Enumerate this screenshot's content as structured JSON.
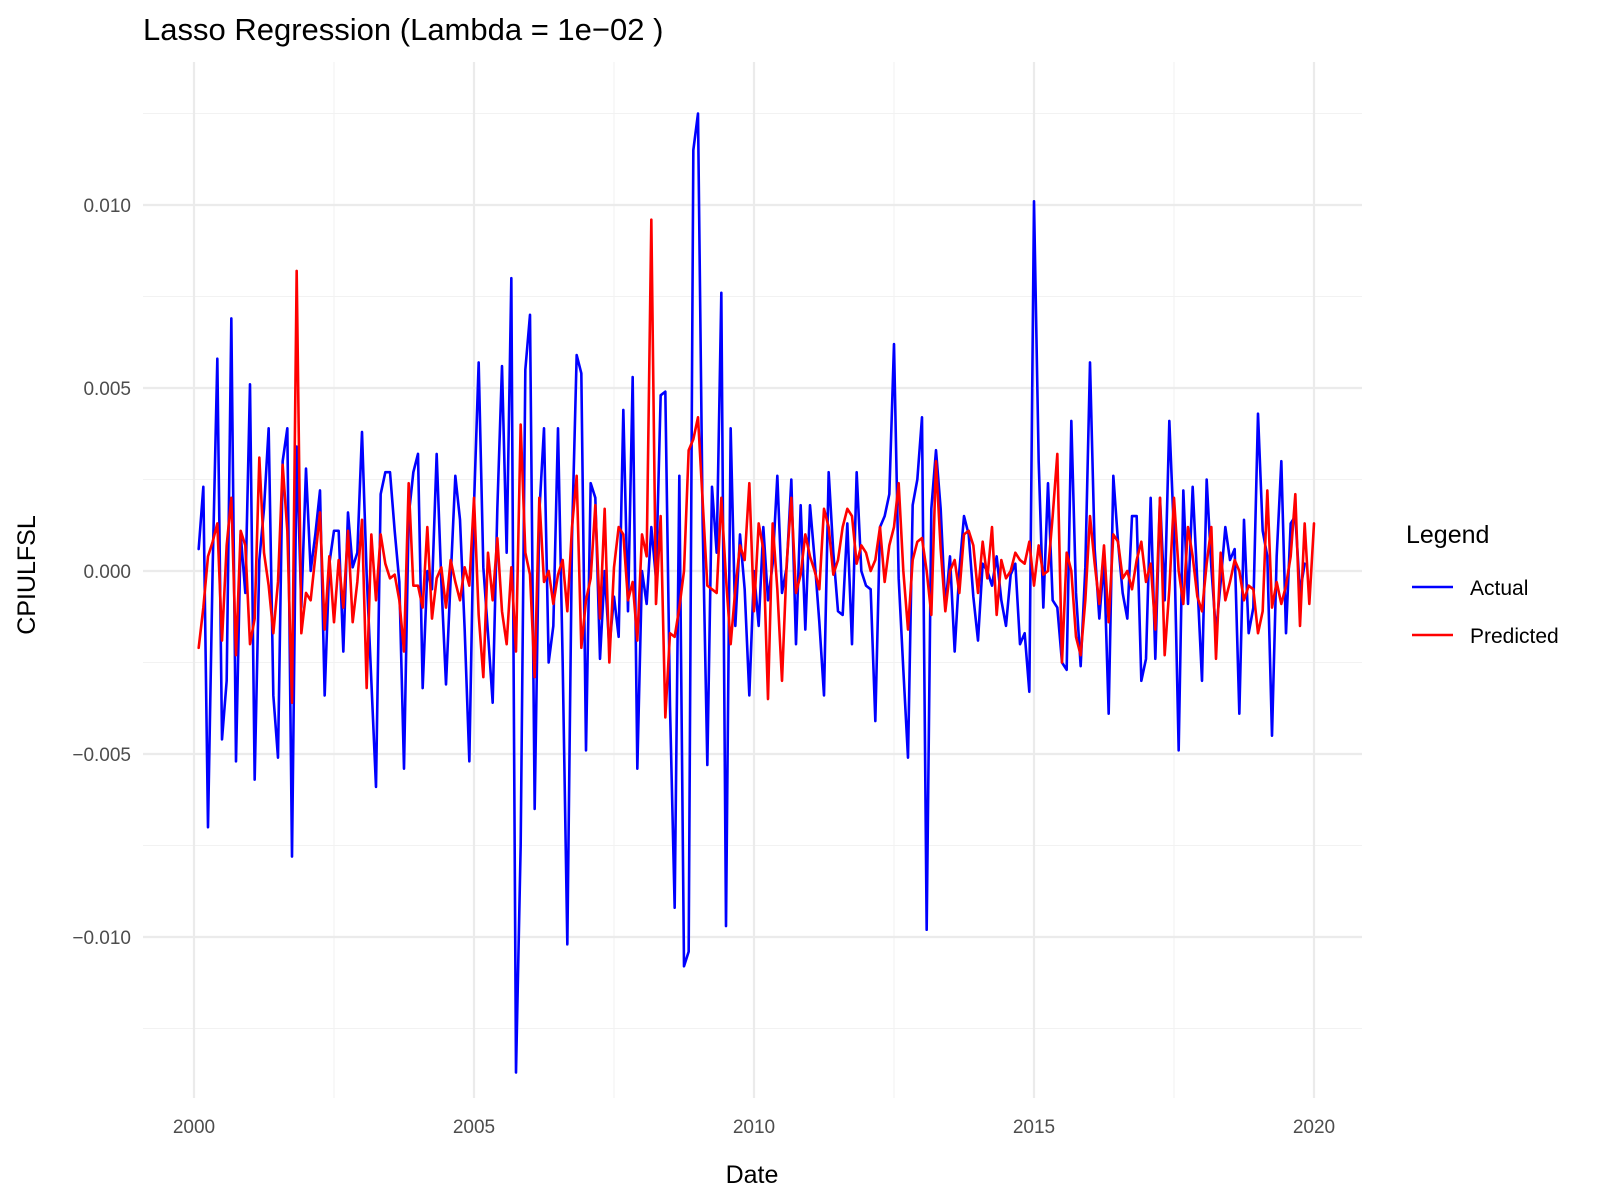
{
  "chart_data": {
    "type": "line",
    "title": "Lasso Regression (Lambda = 1e−02 )",
    "xlabel": "Date",
    "ylabel": "CPIULFSL",
    "xlim": [
      "2000-01-01",
      "2020-01-01"
    ],
    "ylim": [
      -0.0143,
      0.0131
    ],
    "x_ticks": [
      "2000",
      "2005",
      "2010",
      "2015",
      "2020"
    ],
    "y_ticks": [
      0.01,
      0.005,
      0.0,
      -0.005,
      -0.01
    ],
    "y_tick_labels": [
      "0.010",
      "0.005",
      "0.000",
      "−0.005",
      "−0.010"
    ],
    "grid": true,
    "legend": {
      "title": "Legend",
      "position": "right"
    },
    "x_start": "2000-02",
    "x_step": "1 month",
    "series": [
      {
        "name": "Actual",
        "color": "#0000ff",
        "values": [
          0.0006,
          0.0023,
          -0.007,
          0.0001,
          0.0058,
          -0.0046,
          -0.003,
          0.0069,
          -0.0052,
          0.001,
          -0.0006,
          0.0051,
          -0.0057,
          0.0003,
          0.0017,
          0.0039,
          -0.0034,
          -0.0051,
          0.003,
          0.0039,
          -0.0078,
          0.0034,
          -0.001,
          0.0028,
          0.0,
          0.001,
          0.0022,
          -0.0034,
          0.0002,
          0.0011,
          0.0011,
          -0.0022,
          0.0016,
          0.0001,
          0.0005,
          0.0038,
          -0.0001,
          -0.003,
          -0.0059,
          0.0021,
          0.0027,
          0.0027,
          0.0011,
          -0.0003,
          -0.0054,
          0.0015,
          0.0027,
          0.0032,
          -0.0032,
          0.0,
          -0.0005,
          0.0032,
          -0.0003,
          -0.0031,
          -0.0002,
          0.0026,
          0.0014,
          -0.0016,
          -0.0052,
          0.0018,
          0.0057,
          0.0001,
          -0.0017,
          -0.0036,
          0.0017,
          0.0056,
          0.0005,
          0.008,
          -0.0137,
          -0.0075,
          0.0055,
          0.007,
          -0.0065,
          0.0016,
          0.0039,
          -0.0025,
          -0.0015,
          0.0039,
          -0.0025,
          -0.0102,
          0.0009,
          0.0059,
          0.0054,
          -0.0049,
          0.0024,
          0.002,
          -0.0024,
          0.0,
          -0.0021,
          -0.0007,
          -0.0018,
          0.0044,
          -0.0011,
          0.0053,
          -0.0054,
          0.0,
          -0.0009,
          0.0012,
          -0.0002,
          0.0048,
          0.0049,
          -0.0037,
          -0.0092,
          0.0026,
          -0.0108,
          -0.0104,
          0.0115,
          0.0125,
          0.0013,
          -0.0053,
          0.0023,
          0.0005,
          0.0076,
          -0.0097,
          0.0039,
          -0.0015,
          0.001,
          -0.0005,
          -0.0034,
          0.0,
          -0.0015,
          0.0012,
          -0.0008,
          0.0002,
          0.0026,
          -0.0006,
          0.0001,
          0.0025,
          -0.002,
          0.0018,
          -0.0016,
          0.0018,
          0.0003,
          -0.0014,
          -0.0034,
          0.0027,
          0.0005,
          -0.0011,
          -0.0012,
          0.0013,
          -0.002,
          0.0027,
          0.0,
          -0.0004,
          -0.0005,
          -0.0041,
          0.0012,
          0.0015,
          0.0021,
          0.0062,
          -0.0002,
          -0.0027,
          -0.0051,
          0.0018,
          0.0025,
          0.0042,
          -0.0098,
          0.0017,
          0.0033,
          0.0017,
          -0.001,
          0.0004,
          -0.0022,
          0.0,
          0.0015,
          0.001,
          -0.0007,
          -0.0019,
          0.0002,
          0.0,
          -0.0004,
          0.0004,
          -0.0008,
          -0.0015,
          -0.0001,
          0.0002,
          -0.002,
          -0.0017,
          -0.0033,
          0.0101,
          0.003,
          -0.001,
          0.0024,
          -0.0008,
          -0.001,
          -0.0025,
          -0.0027,
          0.0041,
          -0.0006,
          -0.0026,
          0.0001,
          0.0057,
          0.0006,
          -0.0013,
          0.0003,
          -0.0039,
          0.0026,
          0.0008,
          -0.0006,
          -0.0013,
          0.0015,
          0.0015,
          -0.003,
          -0.0024,
          0.002,
          -0.0024,
          0.002,
          -0.0008,
          0.0041,
          0.001,
          -0.0049,
          0.0022,
          -0.0009,
          0.0023,
          -0.0003,
          -0.003,
          0.0025,
          0.0001,
          -0.0017,
          -0.0003,
          0.0012,
          0.0003,
          0.0006,
          -0.0039,
          0.0014,
          -0.0017,
          -0.001,
          0.0043,
          0.0011,
          0.0004,
          -0.0045,
          0.0004,
          0.003,
          -0.0017,
          0.0013,
          0.0015,
          -0.0006,
          0.0002
        ]
      },
      {
        "name": "Predicted",
        "color": "#ff0000",
        "values": [
          -0.0021,
          -0.001,
          0.0004,
          0.0008,
          0.0013,
          -0.0019,
          0.0007,
          0.002,
          -0.0023,
          0.0011,
          0.0007,
          -0.002,
          -0.0013,
          0.0031,
          0.0005,
          -0.0004,
          -0.0017,
          -0.0003,
          0.0029,
          0.0011,
          -0.0036,
          0.0082,
          -0.0017,
          -0.0006,
          -0.0008,
          0.0004,
          0.0016,
          -0.0016,
          0.0004,
          -0.0014,
          0.0003,
          -0.001,
          0.0011,
          -0.0014,
          -0.0003,
          0.0014,
          -0.0032,
          0.001,
          -0.0008,
          0.001,
          0.0002,
          -0.0002,
          -0.0001,
          -0.0008,
          -0.0022,
          0.0024,
          -0.0004,
          -0.0004,
          -0.001,
          0.0012,
          -0.0013,
          -0.0002,
          0.0001,
          -0.001,
          0.0003,
          -0.0003,
          -0.0008,
          0.0001,
          -0.0004,
          0.002,
          -0.0012,
          -0.0029,
          0.0005,
          -0.0008,
          0.0009,
          -0.0011,
          -0.002,
          0.0001,
          -0.0022,
          0.004,
          0.0005,
          -0.0001,
          -0.0029,
          0.002,
          -0.0003,
          0.0,
          -0.0009,
          -0.0001,
          0.0003,
          -0.0011,
          0.0012,
          0.0026,
          -0.0021,
          -0.0008,
          -0.0002,
          0.0018,
          -0.0013,
          0.0017,
          -0.0025,
          0.0001,
          0.0012,
          0.001,
          -0.0008,
          -0.0003,
          -0.0019,
          0.001,
          0.0004,
          0.0096,
          -0.0009,
          0.0015,
          -0.004,
          -0.0017,
          -0.0018,
          -0.001,
          0.0,
          0.0033,
          0.0036,
          0.0042,
          0.0019,
          -0.0004,
          -0.0005,
          -0.0006,
          0.002,
          -0.0002,
          -0.002,
          -0.0005,
          0.0007,
          0.0003,
          0.0024,
          -0.0011,
          0.0013,
          0.0006,
          -0.0035,
          0.0013,
          -0.0005,
          -0.003,
          0.0002,
          0.002,
          -0.0006,
          -0.0001,
          0.001,
          0.0004,
          0.0,
          -0.0005,
          0.0017,
          0.0012,
          -0.0001,
          0.0003,
          0.0012,
          0.0017,
          0.0015,
          0.0002,
          0.0007,
          0.0005,
          0.0,
          0.0003,
          0.0012,
          -0.0003,
          0.0007,
          0.0012,
          0.0024,
          0.0,
          -0.0016,
          0.0003,
          0.0008,
          0.0009,
          0.0,
          -0.0012,
          0.003,
          0.0006,
          -0.0011,
          0.0,
          0.0003,
          -0.0006,
          0.001,
          0.0011,
          0.0007,
          -0.0006,
          0.0008,
          -0.0002,
          0.0012,
          -0.0012,
          0.0003,
          -0.0002,
          0.0,
          0.0005,
          0.0003,
          0.0002,
          0.0008,
          -0.0004,
          0.0007,
          -0.0001,
          0.0,
          0.0015,
          0.0032,
          -0.0025,
          0.0005,
          0.0,
          -0.0018,
          -0.0023,
          -0.0008,
          0.0015,
          0.0002,
          -0.0009,
          0.0007,
          -0.0014,
          0.001,
          0.0008,
          -0.0002,
          0.0,
          -0.0005,
          0.0003,
          0.0008,
          -0.0003,
          0.0002,
          -0.0016,
          0.002,
          -0.0023,
          -0.0005,
          0.002,
          0.0,
          -0.0009,
          0.0012,
          0.0004,
          -0.0007,
          -0.0011,
          0.0002,
          0.0012,
          -0.0024,
          0.0005,
          -0.0008,
          -0.0003,
          0.0003,
          0.0,
          -0.0008,
          -0.0004,
          -0.0005,
          -0.0017,
          -0.0011,
          0.0022,
          -0.001,
          -0.0003,
          -0.0009,
          -0.0004,
          0.0004,
          0.0021,
          -0.0015,
          0.0013,
          -0.0009,
          0.0013
        ]
      }
    ]
  }
}
